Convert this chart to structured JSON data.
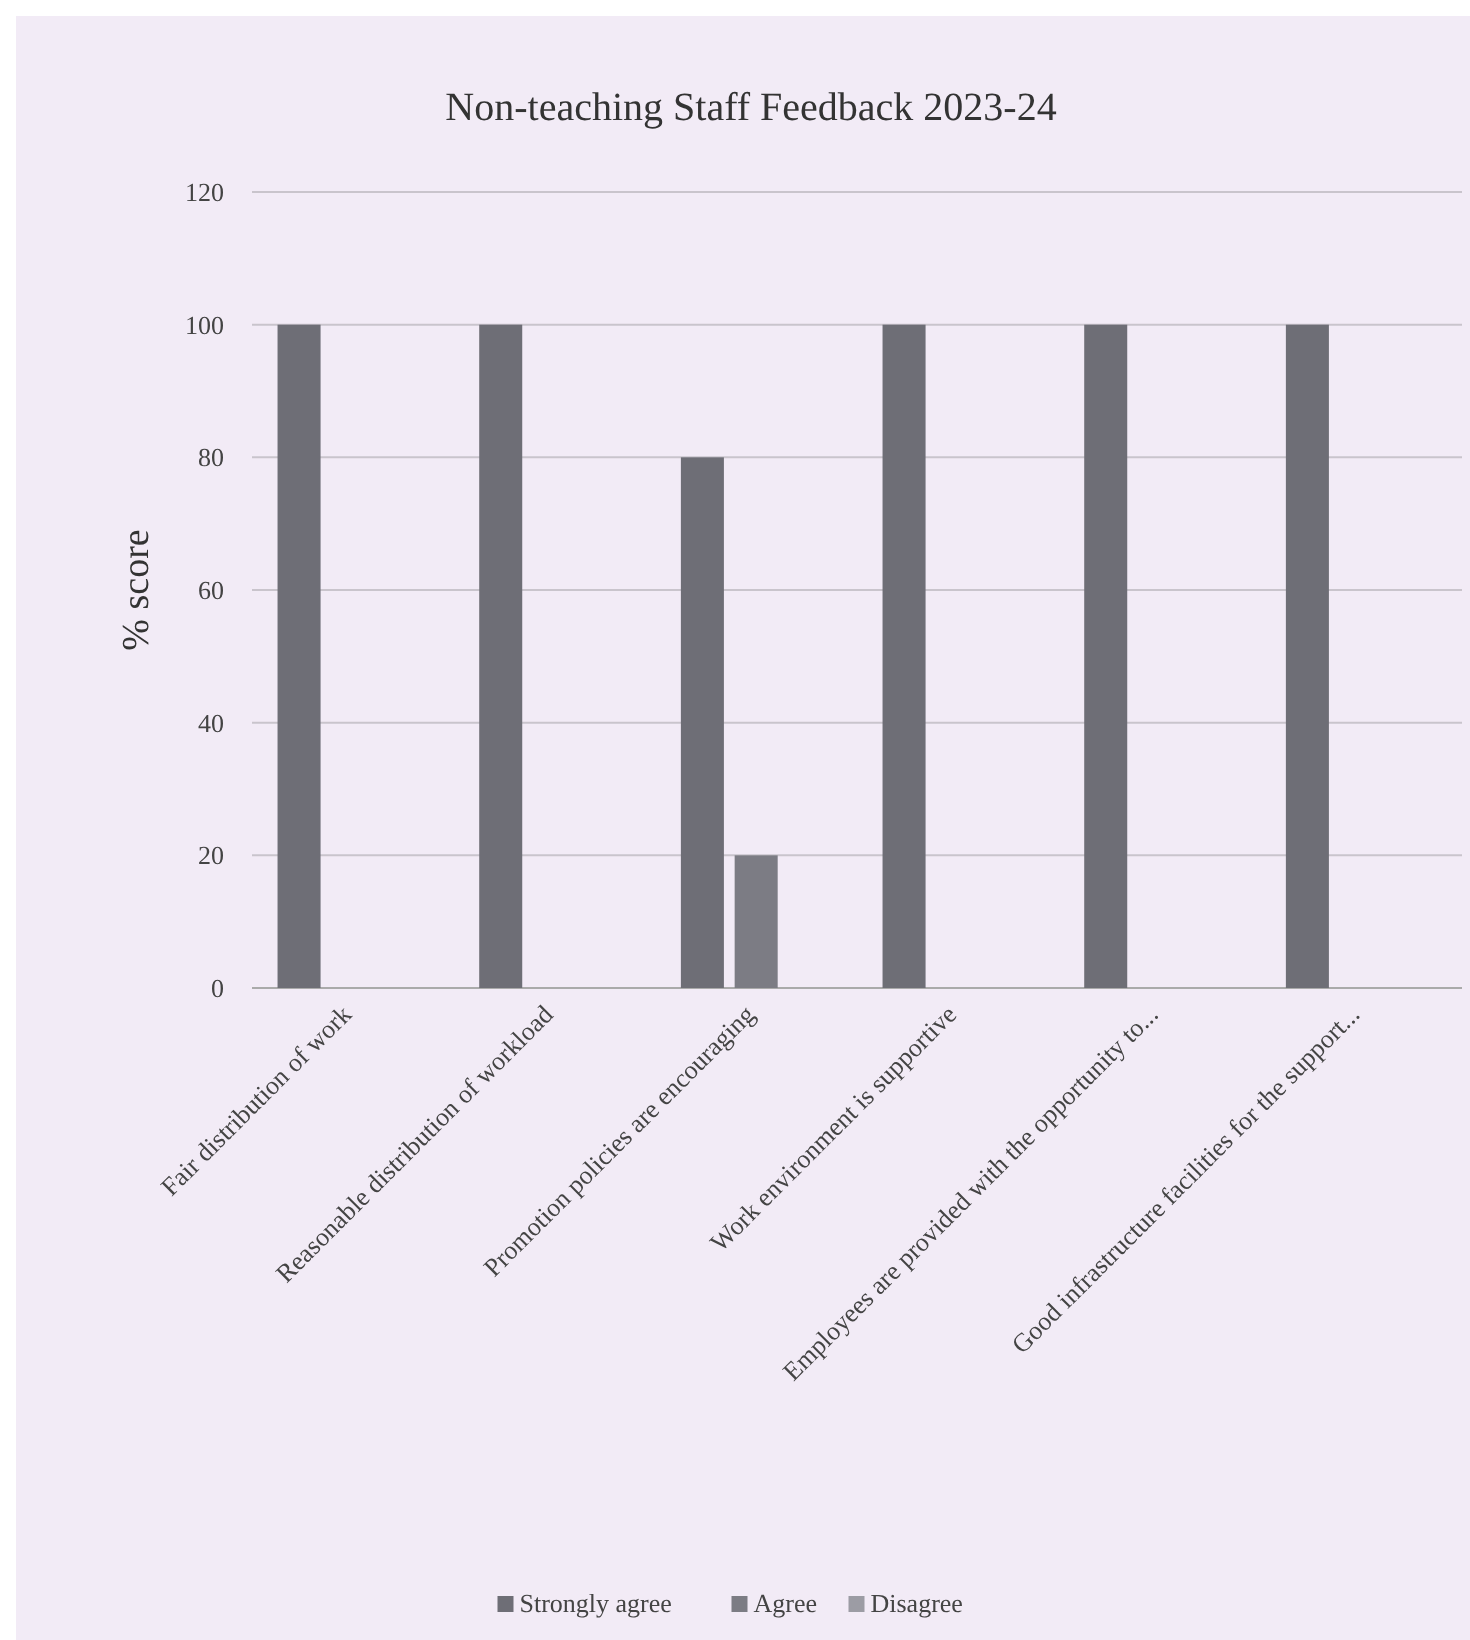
{
  "chart_data": {
    "type": "bar",
    "title": "Non-teaching  Staff Feedback  2023-24",
    "ylabel": "% score",
    "categories": [
      "Fair distribution of work",
      "Reasonable distribution of workload",
      "Promotion policies are encouraging",
      "Work environment is supportive",
      "Employees are provided with the opportunity to...",
      "Good infrastructure facilities for the support..."
    ],
    "series": [
      {
        "name": "Strongly agree",
        "color": "#6e6e76",
        "values": [
          100,
          100,
          80,
          100,
          100,
          100
        ]
      },
      {
        "name": "Agree",
        "color": "#7c7c84",
        "values": [
          0,
          0,
          20,
          0,
          0,
          0
        ]
      },
      {
        "name": "Disagree",
        "color": "#9c9ca4",
        "values": [
          0,
          0,
          0,
          0,
          0,
          0
        ]
      }
    ],
    "ylim": [
      0,
      120
    ],
    "yticks": [
      0,
      20,
      40,
      60,
      80,
      100,
      120
    ],
    "grid": "y",
    "legend": "bottom"
  }
}
